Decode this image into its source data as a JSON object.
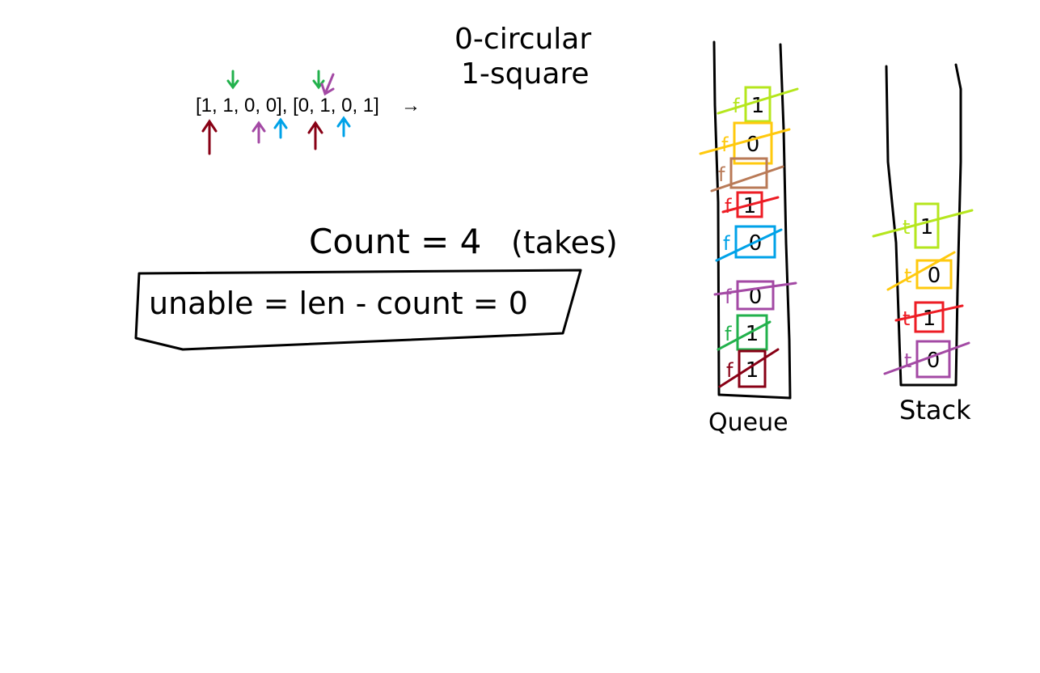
{
  "legend": {
    "line0": "0-circular",
    "line1": "1-square"
  },
  "arrays": {
    "text": "[1, 1, 0, 0], [0, 1, 0, 1]",
    "arrow": "→"
  },
  "count": {
    "text": "Count = 4",
    "note": "(takes)"
  },
  "formula": {
    "text": "unable = len - count = 0"
  },
  "queue": {
    "label": "Queue",
    "cells": [
      "1",
      "0",
      "",
      "1",
      "0",
      "0",
      "1",
      "1"
    ],
    "marker": "f"
  },
  "stack": {
    "label": "Stack",
    "cells": [
      "1",
      "0",
      "1",
      "0"
    ],
    "marker": "t"
  },
  "colors": {
    "ink": "#000000",
    "green": "#22b14c",
    "purple": "#a349a4",
    "blue": "#00a2e8",
    "maroon": "#880015",
    "lime": "#b5e61d",
    "yellow": "#ffc90e",
    "brown": "#b97a57",
    "red": "#ed1c24"
  }
}
